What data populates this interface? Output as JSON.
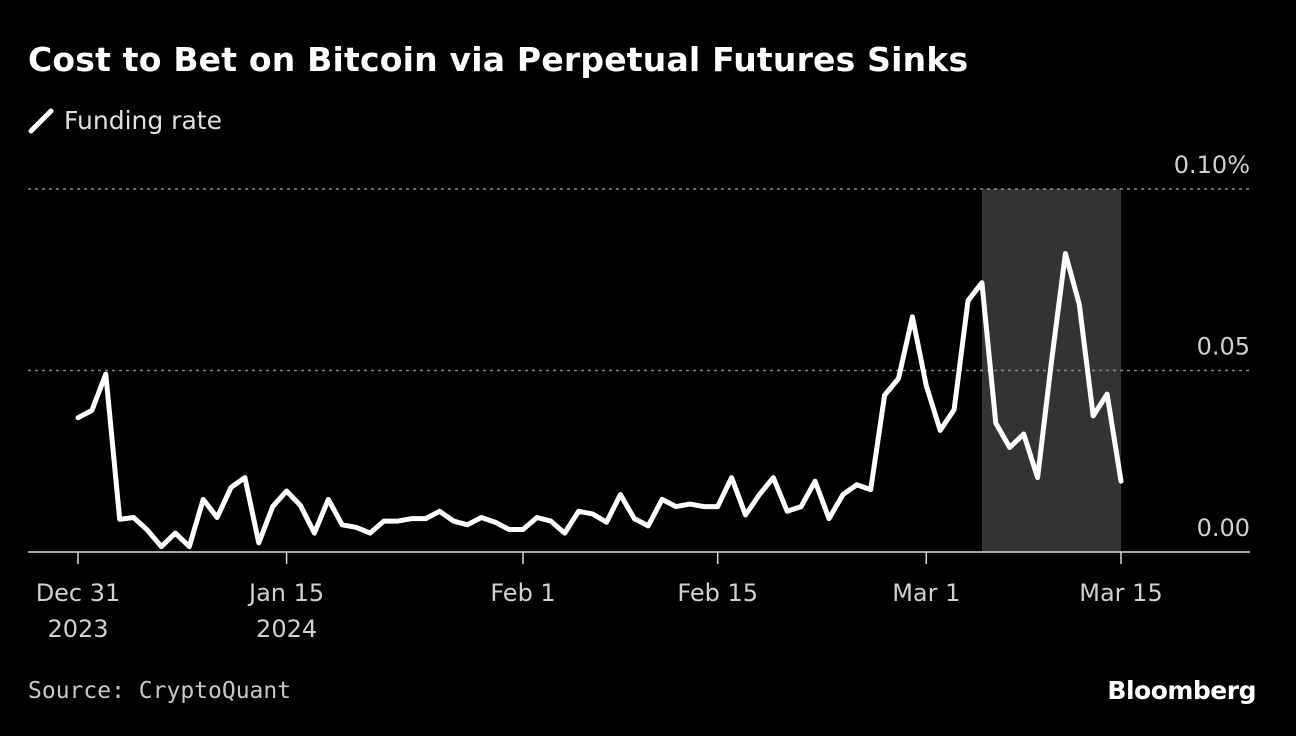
{
  "title": "Cost to Bet on Bitcoin via Perpetual Futures Sinks",
  "legend": {
    "label": "Funding rate",
    "icon": "line-swatch-icon"
  },
  "source": "Source: CryptoQuant",
  "brand": "Bloomberg",
  "colors": {
    "background": "#000000",
    "line": "#ffffff",
    "highlight": "#333333",
    "grid": "#8a8a8a"
  },
  "chart_data": {
    "type": "line",
    "title": "Cost to Bet on Bitcoin via Perpetual Futures Sinks",
    "ylim": [
      0,
      0.1
    ],
    "y_ticks": [
      {
        "value": 0.1,
        "label": "0.10%"
      },
      {
        "value": 0.05,
        "label": "0.05"
      },
      {
        "value": 0.0,
        "label": "0.00"
      }
    ],
    "x_ticks": [
      {
        "date": "2023-12-31",
        "label": [
          "Dec 31",
          "2023"
        ]
      },
      {
        "date": "2024-01-15",
        "label": [
          "Jan 15",
          "2024"
        ]
      },
      {
        "date": "2024-02-01",
        "label": [
          "Feb 1"
        ]
      },
      {
        "date": "2024-02-15",
        "label": [
          "Feb 15"
        ]
      },
      {
        "date": "2024-03-01",
        "label": [
          "Mar 1"
        ]
      },
      {
        "date": "2024-03-15",
        "label": [
          "Mar 15"
        ]
      }
    ],
    "highlight": {
      "start": "2024-03-05",
      "end": "2024-03-15"
    },
    "grid": true,
    "legend": "top-left",
    "series": [
      {
        "name": "Funding rate",
        "points": [
          [
            "2023-12-31",
            0.037
          ],
          [
            "2024-01-01",
            0.039
          ],
          [
            "2024-01-02",
            0.049
          ],
          [
            "2024-01-03",
            0.009
          ],
          [
            "2024-01-04",
            0.0095
          ],
          [
            "2024-01-05",
            0.006
          ],
          [
            "2024-01-06",
            0.0015
          ],
          [
            "2024-01-07",
            0.0052
          ],
          [
            "2024-01-08",
            0.0015
          ],
          [
            "2024-01-09",
            0.0145
          ],
          [
            "2024-01-10",
            0.0095
          ],
          [
            "2024-01-11",
            0.0178
          ],
          [
            "2024-01-12",
            0.0205
          ],
          [
            "2024-01-13",
            0.0025
          ],
          [
            "2024-01-14",
            0.0125
          ],
          [
            "2024-01-15",
            0.0168
          ],
          [
            "2024-01-16",
            0.0128
          ],
          [
            "2024-01-17",
            0.0052
          ],
          [
            "2024-01-18",
            0.0145
          ],
          [
            "2024-01-19",
            0.0075
          ],
          [
            "2024-01-20",
            0.0068
          ],
          [
            "2024-01-21",
            0.0052
          ],
          [
            "2024-01-22",
            0.0085
          ],
          [
            "2024-01-23",
            0.0085
          ],
          [
            "2024-01-24",
            0.0092
          ],
          [
            "2024-01-25",
            0.0092
          ],
          [
            "2024-01-26",
            0.0112
          ],
          [
            "2024-01-27",
            0.0085
          ],
          [
            "2024-01-28",
            0.0075
          ],
          [
            "2024-01-29",
            0.0095
          ],
          [
            "2024-01-30",
            0.0082
          ],
          [
            "2024-01-31",
            0.0062
          ],
          [
            "2024-02-01",
            0.0062
          ],
          [
            "2024-02-02",
            0.0095
          ],
          [
            "2024-02-03",
            0.0085
          ],
          [
            "2024-02-04",
            0.0052
          ],
          [
            "2024-02-05",
            0.0112
          ],
          [
            "2024-02-06",
            0.0105
          ],
          [
            "2024-02-07",
            0.0082
          ],
          [
            "2024-02-08",
            0.0158
          ],
          [
            "2024-02-09",
            0.0092
          ],
          [
            "2024-02-10",
            0.0072
          ],
          [
            "2024-02-11",
            0.0145
          ],
          [
            "2024-02-12",
            0.0125
          ],
          [
            "2024-02-13",
            0.0132
          ],
          [
            "2024-02-14",
            0.0125
          ],
          [
            "2024-02-15",
            0.0125
          ],
          [
            "2024-02-16",
            0.0205
          ],
          [
            "2024-02-17",
            0.0102
          ],
          [
            "2024-02-18",
            0.0158
          ],
          [
            "2024-02-19",
            0.0205
          ],
          [
            "2024-02-20",
            0.0112
          ],
          [
            "2024-02-21",
            0.0125
          ],
          [
            "2024-02-22",
            0.0195
          ],
          [
            "2024-02-23",
            0.0092
          ],
          [
            "2024-02-24",
            0.0158
          ],
          [
            "2024-02-25",
            0.0185
          ],
          [
            "2024-02-26",
            0.0172
          ],
          [
            "2024-02-27",
            0.0432
          ],
          [
            "2024-02-28",
            0.0478
          ],
          [
            "2024-02-29",
            0.0648
          ],
          [
            "2024-03-01",
            0.0458
          ],
          [
            "2024-03-02",
            0.0335
          ],
          [
            "2024-03-03",
            0.0392
          ],
          [
            "2024-03-04",
            0.0692
          ],
          [
            "2024-03-05",
            0.0742
          ],
          [
            "2024-03-06",
            0.0355
          ],
          [
            "2024-03-07",
            0.0288
          ],
          [
            "2024-03-08",
            0.0325
          ],
          [
            "2024-03-09",
            0.0205
          ],
          [
            "2024-03-10",
            0.0525
          ],
          [
            "2024-03-11",
            0.0822
          ],
          [
            "2024-03-12",
            0.0682
          ],
          [
            "2024-03-13",
            0.0375
          ],
          [
            "2024-03-14",
            0.0435
          ],
          [
            "2024-03-15",
            0.0195
          ]
        ]
      }
    ]
  }
}
